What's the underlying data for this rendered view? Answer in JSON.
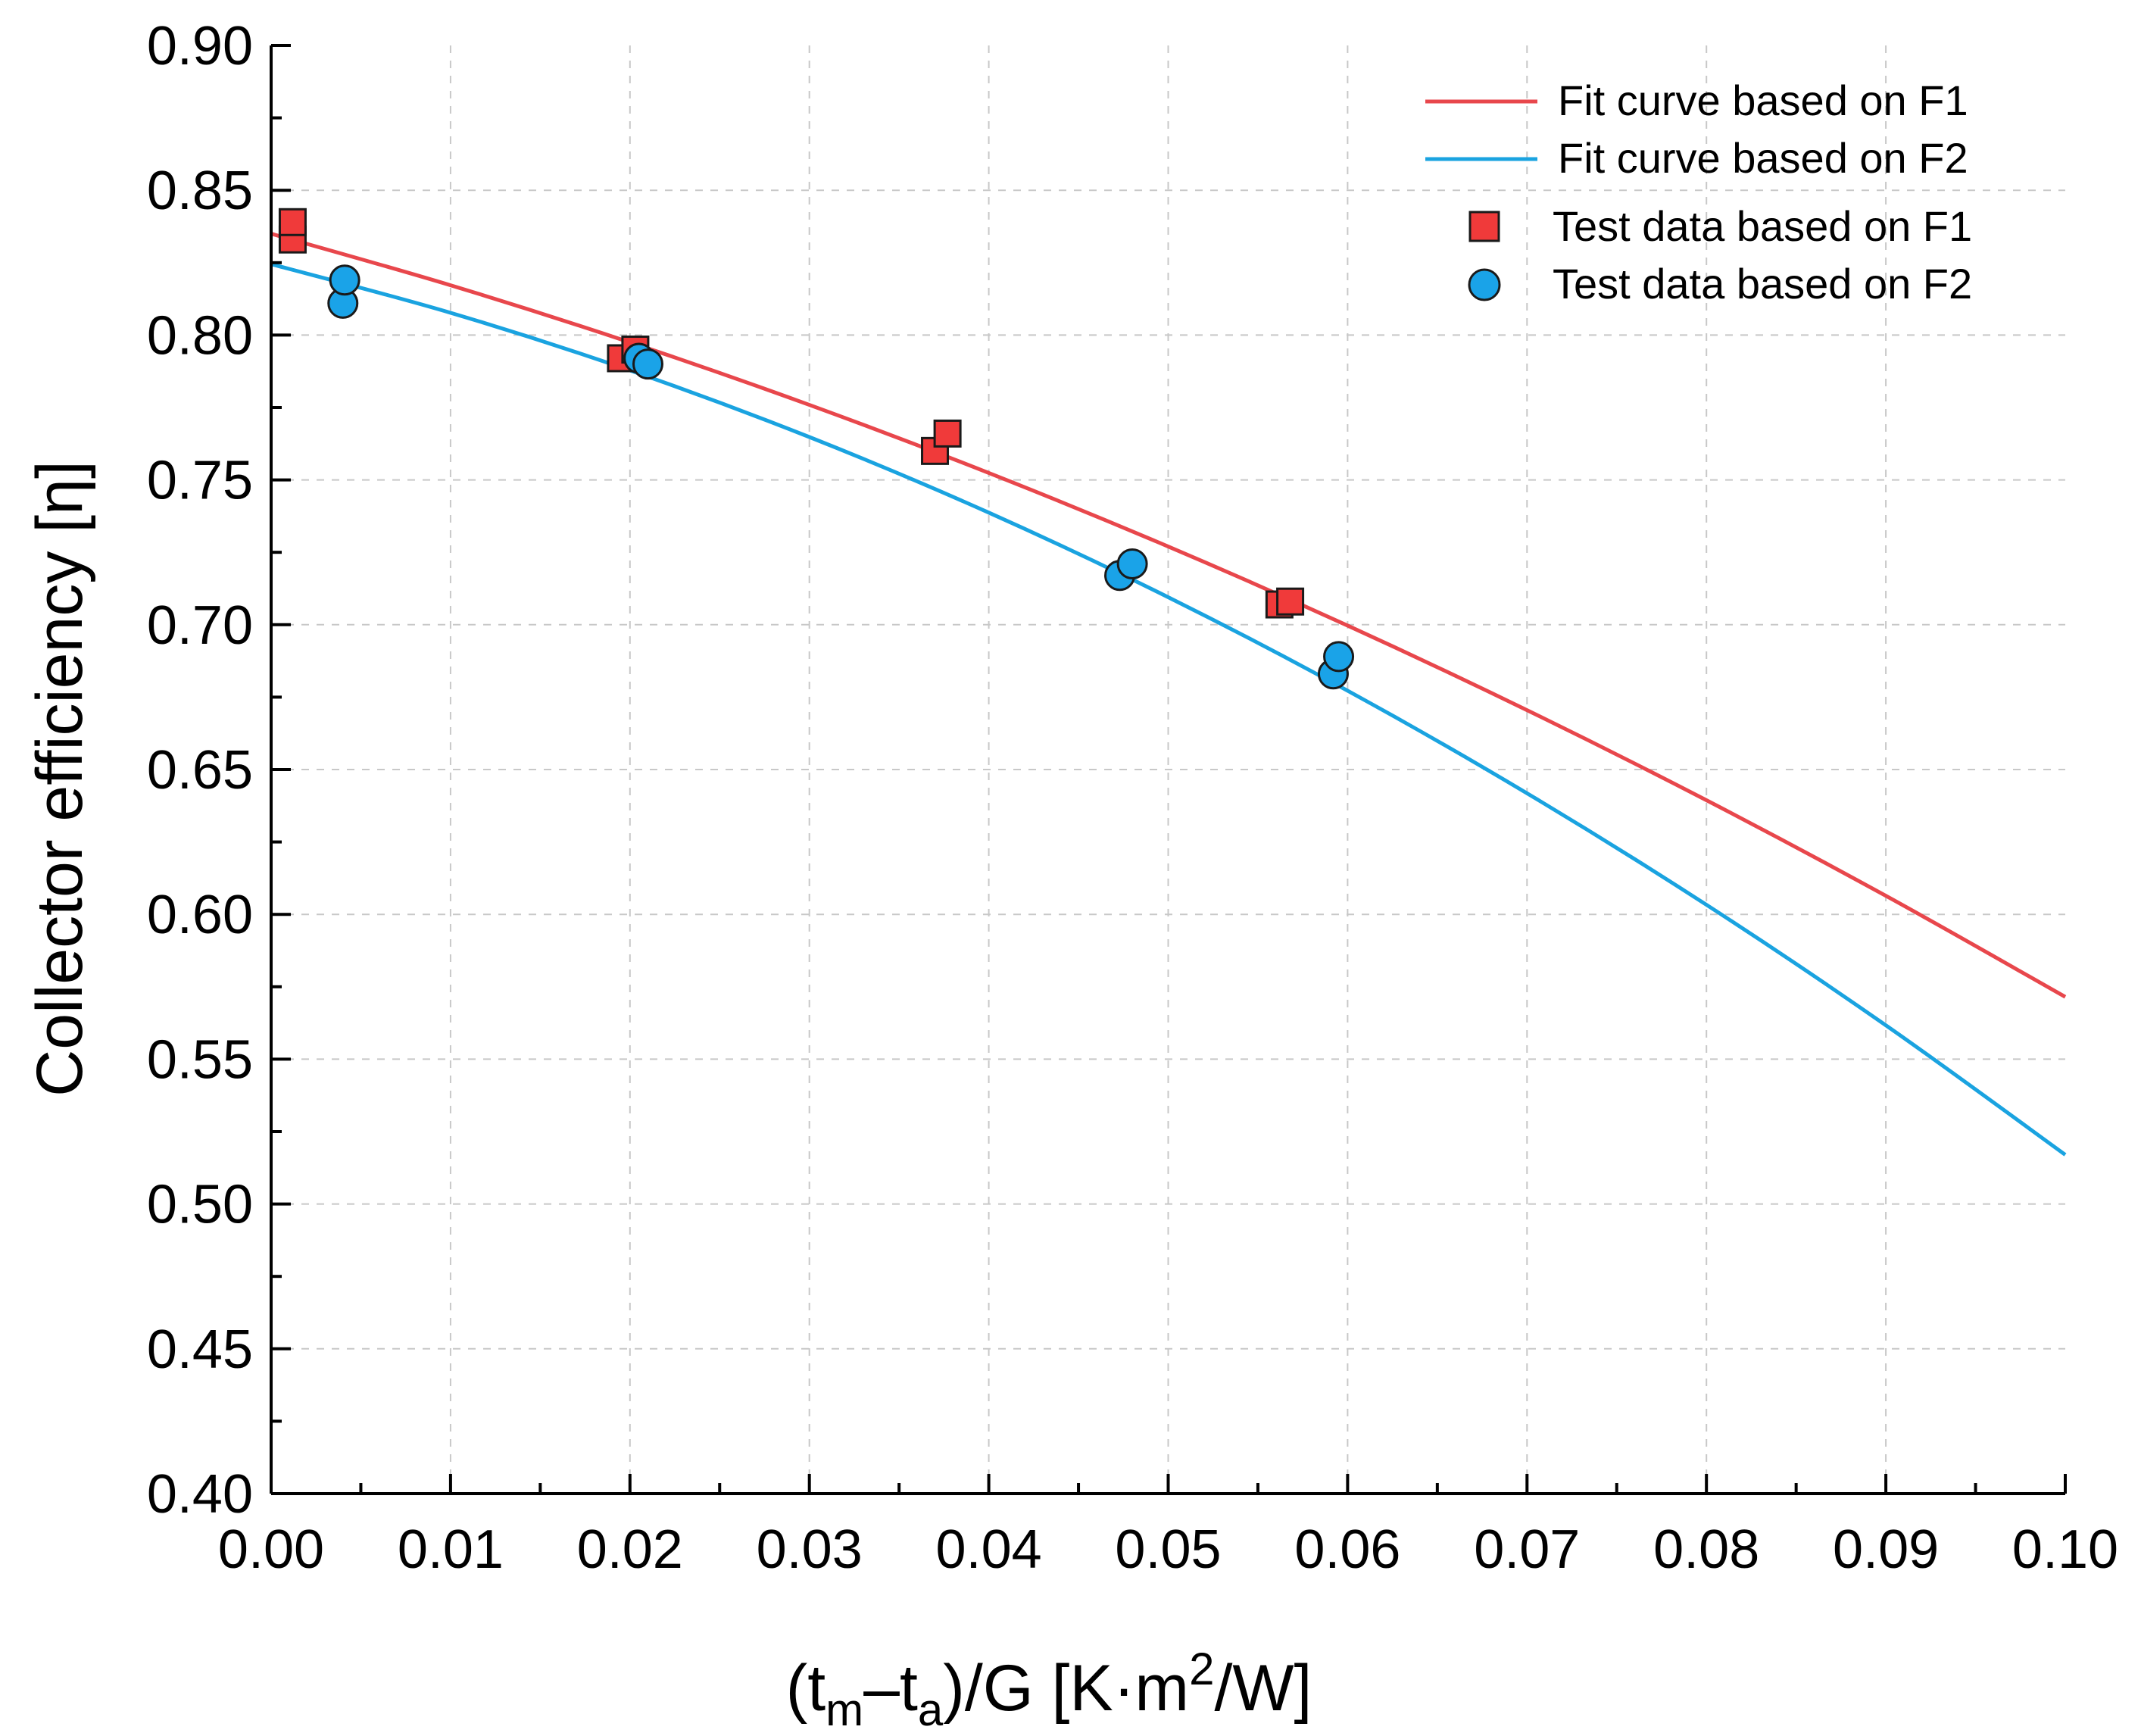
{
  "chart_data": {
    "type": "scatter",
    "title": "",
    "xlabel": {
      "pre": "(t",
      "sub1": "m",
      "mid": "–t",
      "sub2": "a",
      "post": ")/G [K·m",
      "sup": "2",
      "end": "/W]"
    },
    "ylabel": "Collector efficiency [η]",
    "xlim": [
      0.0,
      0.1
    ],
    "ylim": [
      0.4,
      0.9
    ],
    "x_ticks": [
      "0.00",
      "0.01",
      "0.02",
      "0.03",
      "0.04",
      "0.05",
      "0.06",
      "0.07",
      "0.08",
      "0.09",
      "0.10"
    ],
    "y_ticks": [
      "0.40",
      "0.45",
      "0.50",
      "0.55",
      "0.60",
      "0.65",
      "0.70",
      "0.75",
      "0.80",
      "0.85",
      "0.90"
    ],
    "grid": true,
    "legend_position": "top-right",
    "series": [
      {
        "name": "Fit curve based on F1",
        "kind": "line",
        "color": "#e8474c",
        "x": [
          0.0,
          0.01,
          0.02,
          0.03,
          0.04,
          0.05,
          0.06,
          0.07,
          0.08,
          0.09,
          0.1
        ],
        "y": [
          0.835,
          0.8172,
          0.7975,
          0.7759,
          0.7524,
          0.727,
          0.6997,
          0.6705,
          0.6394,
          0.6064,
          0.5715
        ]
      },
      {
        "name": "Fit curve based on F2",
        "kind": "line",
        "color": "#1aa3e0",
        "x": [
          0.0,
          0.01,
          0.02,
          0.03,
          0.04,
          0.05,
          0.06,
          0.07,
          0.08,
          0.09,
          0.1
        ],
        "y": [
          0.8245,
          0.8077,
          0.7878,
          0.7648,
          0.7387,
          0.7095,
          0.6772,
          0.6418,
          0.6033,
          0.5617,
          0.517
        ]
      },
      {
        "name": "Test data based on F1",
        "kind": "scatter",
        "marker": "square",
        "color": "#f03a3a",
        "x": [
          0.0012,
          0.0012,
          0.0195,
          0.0203,
          0.037,
          0.0377,
          0.0562,
          0.0568
        ],
        "y": [
          0.833,
          0.839,
          0.792,
          0.795,
          0.76,
          0.766,
          0.707,
          0.708
        ]
      },
      {
        "name": "Test data based on F2",
        "kind": "scatter",
        "marker": "circle",
        "color": "#1aa3e8",
        "x": [
          0.004,
          0.0041,
          0.0205,
          0.021,
          0.0473,
          0.048,
          0.0592,
          0.0595
        ],
        "y": [
          0.811,
          0.819,
          0.792,
          0.79,
          0.717,
          0.721,
          0.683,
          0.689
        ]
      }
    ]
  }
}
